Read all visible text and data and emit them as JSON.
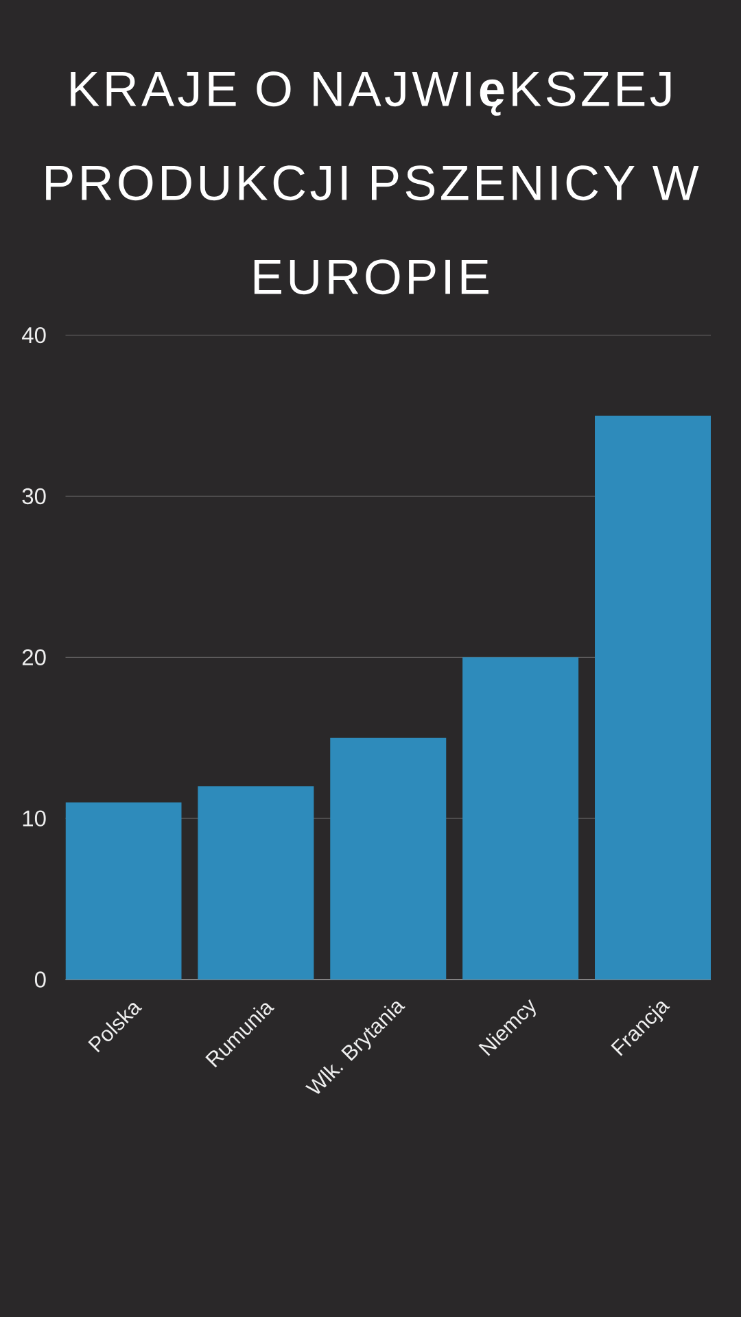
{
  "chart_data": {
    "type": "bar",
    "title": "KRAJE O NAJWI**ę**KSZEJ PRODUKCJI PSZENICY W EUROPIE",
    "categories": [
      "Polska",
      "Rumunia",
      "Wlk. Brytania",
      "Niemcy",
      "Francja"
    ],
    "values": [
      11,
      12,
      15,
      20,
      35
    ],
    "color": "#2e8bbb",
    "ylim": [
      0,
      40
    ],
    "yticks": [
      0,
      10,
      20,
      30,
      40
    ],
    "grid": "y"
  }
}
